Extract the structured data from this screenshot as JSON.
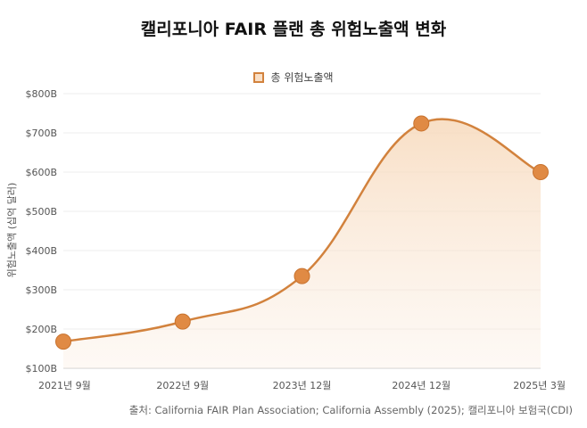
{
  "chart_data": {
    "type": "area",
    "title": "캘리포니아 FAIR 플랜 총 위험노출액 변화",
    "categories": [
      "2021년 9월",
      "2022년 9월",
      "2023년 12월",
      "2024년 12월",
      "2025년 3월"
    ],
    "series": [
      {
        "name": "총 위험노출액",
        "values": [
          168,
          219,
          335,
          724,
          600
        ]
      }
    ],
    "y_ticks": [
      "$100B",
      "$200B",
      "$300B",
      "$400B",
      "$500B",
      "$600B",
      "$700B",
      "$800B"
    ],
    "ylim": [
      100,
      800
    ],
    "ylabel": "위험노출액 (십억 달러)",
    "xlabel": "",
    "grid": true,
    "legend": "top-center",
    "colors": {
      "line": "#d2823d",
      "fill": "#f7d9bb",
      "point": "#e08a44",
      "grid": "#ececec"
    }
  },
  "source": "출처: California FAIR Plan Association; California Assembly (2025); 캘리포니아 보험국(CDI)"
}
